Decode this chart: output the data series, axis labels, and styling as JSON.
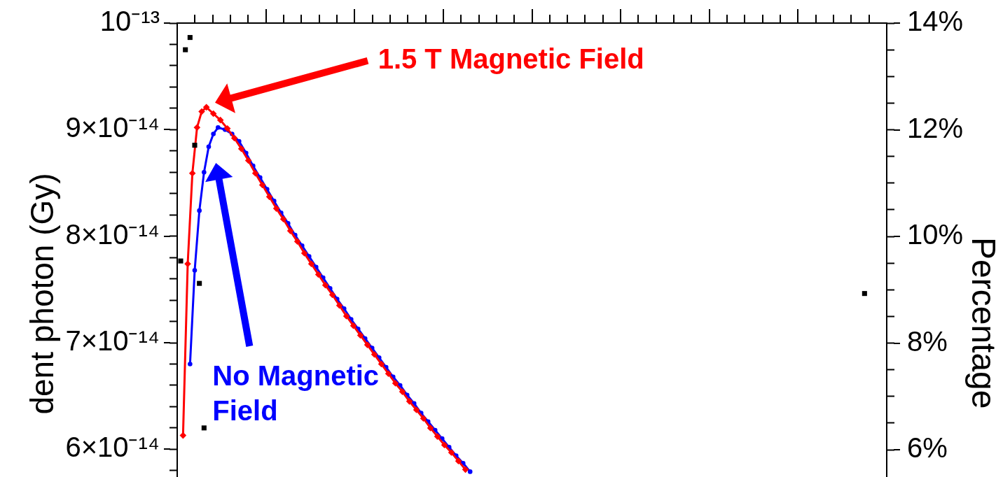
{
  "chart_data": {
    "type": "line",
    "ylabel": "dent photon (Gy)",
    "y2label": "Percentage",
    "categories": [
      null,
      null,
      null,
      null,
      null,
      null,
      null,
      null,
      null,
      null,
      null,
      null,
      null,
      null,
      null,
      null,
      null,
      null,
      null,
      null,
      null,
      null,
      null,
      null,
      null,
      null,
      null,
      null,
      null,
      null,
      null,
      null,
      null,
      null,
      null,
      null,
      null,
      null,
      null,
      null,
      null,
      null,
      null,
      null,
      null,
      null,
      null,
      null,
      null,
      null,
      null,
      null,
      null,
      null,
      null,
      null,
      null,
      null,
      null,
      null,
      null,
      null,
      null,
      null,
      null,
      null,
      null,
      null,
      null,
      null,
      null,
      null,
      null,
      null,
      null,
      null,
      null,
      null,
      null,
      null,
      null,
      null,
      null,
      null,
      null,
      null,
      null,
      null,
      null,
      null,
      null,
      null,
      null,
      null,
      null,
      null,
      null,
      null,
      null,
      null,
      null,
      null,
      null,
      null,
      null,
      null,
      null,
      null,
      null,
      null,
      null,
      null,
      null,
      null,
      null,
      null,
      null,
      null,
      null,
      null,
      null,
      null,
      null,
      null,
      null,
      null,
      null,
      null,
      null,
      null,
      null,
      null,
      null,
      null,
      null,
      null,
      null,
      null,
      null,
      null,
      null,
      null,
      null,
      null,
      null,
      null,
      null,
      null,
      null,
      null,
      null,
      null,
      null,
      null,
      null,
      null,
      null,
      null,
      null,
      null,
      null,
      null,
      null,
      null,
      null,
      null,
      null,
      null,
      null,
      null,
      null,
      null,
      null,
      null,
      null,
      null,
      null,
      null,
      null,
      null,
      null,
      null,
      null,
      null,
      null,
      null,
      null,
      null,
      null,
      null,
      null,
      null,
      null,
      null,
      null,
      null,
      null,
      null,
      null,
      null,
      null,
      null,
      null,
      null,
      null,
      null,
      null,
      null,
      null,
      null,
      null,
      null,
      null,
      null,
      null,
      null,
      null,
      null,
      null,
      null,
      null,
      null,
      null,
      null,
      null,
      null,
      null,
      null,
      null,
      null,
      null,
      null,
      null,
      null,
      null,
      null,
      null,
      null,
      null,
      null,
      null,
      null,
      null,
      null,
      null,
      null,
      null,
      null,
      null,
      null,
      null,
      null,
      null,
      null,
      null,
      null,
      null,
      null,
      null,
      null,
      null,
      null,
      null,
      null,
      null,
      null,
      null,
      null,
      null,
      null,
      null,
      null,
      null,
      null,
      null,
      null,
      null,
      null,
      null,
      null,
      null,
      null,
      null,
      null,
      null,
      null,
      null,
      null,
      null,
      null,
      null,
      null,
      null,
      null,
      null,
      null,
      null,
      null,
      null,
      null,
      null,
      null,
      null,
      null
    ],
    "series": [
      {
        "name": "No Magnetic Field",
        "color": "#0000ff",
        "marker": "circle",
        "values": [
          null,
          null,
          null,
          null,
          null,
          6.8e-14,
          null,
          7.68e-14,
          null,
          8.24e-14,
          null,
          8.6e-14,
          null,
          8.84e-14,
          null,
          8.96e-14,
          null,
          9.02e-14,
          null,
          null,
          9e-14,
          null,
          null,
          8.96e-14,
          null,
          null,
          8.89e-14,
          null,
          null,
          8.78e-14,
          null,
          null,
          8.66e-14,
          null,
          null,
          8.55e-14,
          null,
          null,
          8.44e-14,
          null,
          null,
          8.33e-14,
          null,
          null,
          8.22e-14,
          null,
          null,
          8.12e-14,
          null,
          null,
          8.01e-14,
          null,
          null,
          7.91e-14,
          null,
          null,
          7.81e-14,
          null,
          null,
          7.71e-14,
          null,
          null,
          7.61e-14,
          null,
          null,
          7.51e-14,
          null,
          null,
          7.41e-14,
          null,
          null,
          7.32e-14,
          null,
          null,
          7.22e-14,
          null,
          null,
          7.13e-14,
          null,
          null,
          7.04e-14,
          null,
          null,
          6.95e-14,
          null,
          null,
          6.86e-14,
          null,
          null,
          6.77e-14,
          null,
          null,
          6.68e-14,
          null,
          null,
          6.6e-14,
          null,
          null,
          6.51e-14,
          null,
          null,
          6.43e-14,
          null,
          null,
          6.34e-14,
          null,
          null,
          6.26e-14,
          null,
          null,
          6.18e-14,
          null,
          null,
          6.1e-14,
          null,
          null,
          6.02e-14,
          null,
          null,
          5.94e-14,
          null,
          null,
          5.87e-14,
          null,
          null,
          5.79e-14,
          null,
          null,
          null,
          null,
          null,
          null,
          null,
          null,
          null,
          null,
          null,
          null,
          null,
          null,
          null,
          null,
          null,
          null,
          null,
          null,
          null,
          null,
          null,
          null,
          null,
          null,
          null,
          null,
          null,
          null,
          null,
          null,
          null,
          null,
          null,
          null,
          null,
          null,
          null,
          null,
          null,
          null,
          null,
          null,
          null,
          null,
          null,
          null,
          null,
          null,
          null,
          null,
          null,
          null,
          null,
          null,
          null,
          null,
          null,
          null,
          null,
          null,
          null,
          null,
          null,
          null,
          null,
          null,
          null,
          null,
          null,
          null,
          null,
          null,
          null,
          null,
          null,
          null,
          null,
          null,
          null,
          null,
          null,
          null,
          null,
          null,
          null,
          null,
          null,
          null,
          null,
          null,
          null,
          null,
          null,
          null,
          null,
          null,
          null,
          null,
          null,
          null,
          null,
          null,
          null,
          null,
          null,
          null,
          null,
          null,
          null,
          null,
          null,
          null,
          null,
          null,
          null,
          null,
          null,
          null,
          null,
          null,
          null,
          null,
          null,
          null,
          null,
          null,
          null,
          null,
          null,
          null,
          null,
          null,
          null,
          null,
          null,
          null,
          null,
          null,
          null,
          null,
          null,
          null,
          null,
          null,
          null,
          null,
          null,
          null,
          null,
          null,
          null,
          null,
          null,
          null,
          null,
          null,
          null,
          null,
          null,
          null,
          null,
          null,
          null,
          null,
          null,
          null,
          null,
          null,
          null,
          null,
          null,
          null,
          null,
          null,
          null,
          null
        ]
      },
      {
        "name": "1.5 T Magnetic Field",
        "color": "#ff0000",
        "marker": "diamond",
        "values": [
          null,
          null,
          6.13e-14,
          null,
          7.74e-14,
          null,
          8.59e-14,
          null,
          9.02e-14,
          null,
          9.17e-14,
          null,
          9.21e-14,
          null,
          null,
          9.15e-14,
          null,
          null,
          9.09e-14,
          null,
          null,
          9.01e-14,
          null,
          null,
          8.92e-14,
          null,
          null,
          8.82e-14,
          null,
          null,
          8.71e-14,
          null,
          null,
          8.59e-14,
          null,
          null,
          8.48e-14,
          null,
          null,
          8.37e-14,
          null,
          null,
          8.26e-14,
          null,
          null,
          8.16e-14,
          null,
          null,
          8.05e-14,
          null,
          null,
          7.95e-14,
          null,
          null,
          7.84e-14,
          null,
          null,
          7.74e-14,
          null,
          null,
          7.64e-14,
          null,
          null,
          7.54e-14,
          null,
          null,
          7.45e-14,
          null,
          null,
          7.35e-14,
          null,
          null,
          7.25e-14,
          null,
          null,
          7.16e-14,
          null,
          null,
          7.07e-14,
          null,
          null,
          6.98e-14,
          null,
          null,
          6.89e-14,
          null,
          null,
          6.8e-14,
          null,
          null,
          6.71e-14,
          null,
          null,
          6.62e-14,
          null,
          null,
          6.54e-14,
          null,
          null,
          6.45e-14,
          null,
          null,
          6.37e-14,
          null,
          null,
          6.29e-14,
          null,
          null,
          6.2e-14,
          null,
          null,
          6.12e-14,
          null,
          null,
          6.04e-14,
          null,
          null,
          5.97e-14,
          null,
          null,
          5.89e-14,
          null,
          null,
          5.81e-14,
          null,
          null,
          null,
          null,
          null,
          null,
          null,
          null,
          null,
          null,
          null,
          null,
          null,
          null,
          null,
          null,
          null,
          null,
          null,
          null,
          null,
          null,
          null,
          null,
          null,
          null,
          null,
          null,
          null,
          null,
          null,
          null,
          null,
          null,
          null,
          null,
          null,
          null,
          null,
          null,
          null,
          null,
          null,
          null,
          null,
          null,
          null,
          null,
          null,
          null,
          null,
          null,
          null,
          null,
          null,
          null,
          null,
          null,
          null,
          null,
          null,
          null,
          null,
          null,
          null,
          null,
          null,
          null,
          null,
          null,
          null,
          null,
          null,
          null,
          null,
          null,
          null,
          null,
          null,
          null,
          null,
          null,
          null,
          null,
          null,
          null,
          null,
          null,
          null,
          null,
          null,
          null,
          null,
          null,
          null,
          null,
          null,
          null,
          null,
          null,
          null,
          null,
          null,
          null,
          null,
          null,
          null,
          null,
          null,
          null,
          null,
          null,
          null,
          null,
          null,
          null,
          null,
          null,
          null,
          null,
          null,
          null,
          null,
          null,
          null,
          null,
          null,
          null,
          null,
          null,
          null,
          null,
          null,
          null,
          null,
          null,
          null,
          null,
          null,
          null,
          null,
          null,
          null,
          null,
          null,
          null,
          null,
          null,
          null,
          null,
          null,
          null,
          null,
          null,
          null,
          null,
          null,
          null,
          null,
          null,
          null,
          null,
          null,
          null,
          null,
          null,
          null,
          null,
          null,
          null,
          null,
          null,
          null,
          null,
          null,
          null,
          null,
          null,
          null,
          null
        ]
      },
      {
        "type": "scatter",
        "axis": "y2",
        "color": "#000000",
        "marker": "square",
        "values": [
          null,
          9.54,
          null,
          13.5,
          null,
          13.73,
          null,
          11.71,
          null,
          9.12,
          null,
          6.41,
          null,
          null,
          null,
          null,
          null,
          null,
          null,
          null,
          null,
          null,
          null,
          null,
          null,
          null,
          null,
          null,
          null,
          null,
          null,
          null,
          null,
          null,
          null,
          null,
          null,
          null,
          null,
          null,
          null,
          null,
          null,
          null,
          null,
          null,
          null,
          null,
          null,
          null,
          null,
          null,
          null,
          null,
          null,
          null,
          null,
          null,
          null,
          null,
          null,
          null,
          null,
          null,
          null,
          null,
          null,
          null,
          null,
          null,
          null,
          null,
          null,
          null,
          null,
          null,
          null,
          null,
          null,
          null,
          null,
          null,
          null,
          null,
          null,
          null,
          null,
          null,
          null,
          null,
          null,
          null,
          null,
          null,
          null,
          null,
          null,
          null,
          null,
          null,
          null,
          null,
          null,
          null,
          null,
          null,
          null,
          null,
          null,
          null,
          null,
          null,
          null,
          null,
          null,
          null,
          null,
          null,
          null,
          null,
          null,
          null,
          null,
          null,
          null,
          null,
          null,
          null,
          null,
          null,
          null,
          null,
          null,
          null,
          null,
          null,
          null,
          null,
          null,
          null,
          null,
          null,
          null,
          null,
          null,
          null,
          null,
          null,
          null,
          null,
          null,
          null,
          null,
          null,
          null,
          null,
          null,
          null,
          null,
          null,
          null,
          null,
          null,
          null,
          null,
          null,
          null,
          null,
          null,
          null,
          null,
          null,
          null,
          null,
          null,
          null,
          null,
          null,
          null,
          null,
          null,
          null,
          null,
          null,
          null,
          null,
          null,
          null,
          null,
          null,
          null,
          null,
          null,
          null,
          null,
          null,
          null,
          null,
          null,
          null,
          null,
          null,
          null,
          null,
          null,
          null,
          null,
          null,
          null,
          null,
          null,
          null,
          null,
          null,
          null,
          null,
          null,
          null,
          null,
          null,
          null,
          null,
          null,
          null,
          null,
          null,
          null,
          null,
          null,
          null,
          null,
          null,
          null,
          null,
          null,
          null,
          null,
          null,
          null,
          null,
          null,
          null,
          null,
          null,
          null,
          null,
          null,
          null,
          null,
          null,
          null,
          null,
          null,
          null,
          null,
          null,
          null,
          null,
          null,
          null,
          null,
          null,
          null,
          null,
          null,
          null,
          null,
          null,
          null,
          null,
          null,
          null,
          null,
          null,
          null,
          null,
          null,
          null,
          null,
          null,
          null,
          null,
          null,
          null,
          null,
          null,
          null,
          null,
          null,
          null,
          null,
          null,
          null,
          null,
          8.93,
          null,
          null,
          null,
          null,
          null,
          null,
          null,
          null,
          null
        ]
      }
    ],
    "ylim": [
      5.74e-14,
      1e-13
    ],
    "yticks": [
      {
        "value": 1e-13,
        "label": "10⁻¹³"
      },
      {
        "value": 9.8e-14,
        "label": null
      },
      {
        "value": 9.6e-14,
        "label": null
      },
      {
        "value": 9.4e-14,
        "label": null
      },
      {
        "value": 9.2e-14,
        "label": null
      },
      {
        "value": 9e-14,
        "label": "9×10⁻¹⁴"
      },
      {
        "value": 8.8e-14,
        "label": null
      },
      {
        "value": 8.6e-14,
        "label": null
      },
      {
        "value": 8.4e-14,
        "label": null
      },
      {
        "value": 8.2e-14,
        "label": null
      },
      {
        "value": 8e-14,
        "label": "8×10⁻¹⁴"
      },
      {
        "value": 7.8e-14,
        "label": null
      },
      {
        "value": 7.6e-14,
        "label": null
      },
      {
        "value": 7.4e-14,
        "label": null
      },
      {
        "value": 7.2e-14,
        "label": null
      },
      {
        "value": 7e-14,
        "label": "7×10⁻¹⁴"
      },
      {
        "value": 6.8e-14,
        "label": null
      },
      {
        "value": 6.6e-14,
        "label": null
      },
      {
        "value": 6.4e-14,
        "label": null
      },
      {
        "value": 6.2e-14,
        "label": null
      },
      {
        "value": 6e-14,
        "label": "6×10⁻¹⁴"
      },
      {
        "value": 5.8e-14,
        "label": null
      }
    ],
    "y2lim": [
      5.49,
      14
    ],
    "y2ticks": [
      {
        "value": 14,
        "label": "14%"
      },
      {
        "value": 13.5,
        "label": null
      },
      {
        "value": 13,
        "label": null
      },
      {
        "value": 12.5,
        "label": null
      },
      {
        "value": 12,
        "label": "12%"
      },
      {
        "value": 11.5,
        "label": null
      },
      {
        "value": 11,
        "label": null
      },
      {
        "value": 10.5,
        "label": null
      },
      {
        "value": 10,
        "label": "10%"
      },
      {
        "value": 9.5,
        "label": null
      },
      {
        "value": 9,
        "label": null
      },
      {
        "value": 8.5,
        "label": null
      },
      {
        "value": 8,
        "label": "8%"
      },
      {
        "value": 7.5,
        "label": null
      },
      {
        "value": 7,
        "label": null
      },
      {
        "value": 6.5,
        "label": null
      },
      {
        "value": 6,
        "label": "6%"
      }
    ]
  }
}
